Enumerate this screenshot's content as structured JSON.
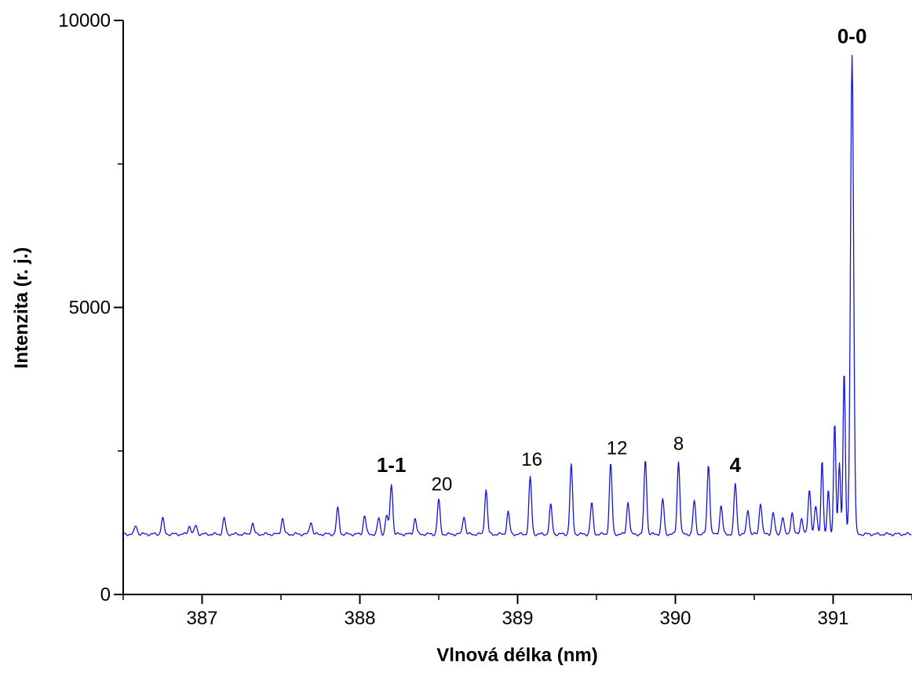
{
  "chart_data": {
    "type": "line",
    "xlabel": "Vlnová délka (nm)",
    "ylabel": "Intenzita (r. j.)",
    "xlim": [
      386.5,
      391.5
    ],
    "ylim": [
      0,
      10000
    ],
    "x_ticks": [
      387,
      388,
      389,
      390,
      391
    ],
    "x_tick_labels": [
      "387",
      "388",
      "389",
      "390",
      "391"
    ],
    "y_ticks": [
      0,
      5000,
      10000
    ],
    "y_tick_labels": [
      "0",
      "5000",
      "10000"
    ],
    "grid": false,
    "baseline": 1050,
    "series": [
      {
        "color": "#1414d8",
        "peaks": [
          [
            386.58,
            1200
          ],
          [
            386.75,
            1330
          ],
          [
            386.92,
            1200
          ],
          [
            386.96,
            1200
          ],
          [
            387.14,
            1330
          ],
          [
            387.32,
            1240
          ],
          [
            387.51,
            1330
          ],
          [
            387.69,
            1270
          ],
          [
            387.86,
            1500
          ],
          [
            388.03,
            1380
          ],
          [
            388.12,
            1330
          ],
          [
            388.17,
            1380
          ],
          [
            388.2,
            1930
          ],
          [
            388.35,
            1330
          ],
          [
            388.5,
            1650
          ],
          [
            388.66,
            1370
          ],
          [
            388.8,
            1830
          ],
          [
            388.94,
            1440
          ],
          [
            389.08,
            2040
          ],
          [
            389.21,
            1560
          ],
          [
            389.34,
            2250
          ],
          [
            389.47,
            1590
          ],
          [
            389.59,
            2280
          ],
          [
            389.7,
            1620
          ],
          [
            389.81,
            2350
          ],
          [
            389.92,
            1660
          ],
          [
            390.02,
            2320
          ],
          [
            390.12,
            1620
          ],
          [
            390.21,
            2270
          ],
          [
            390.29,
            1550
          ],
          [
            390.38,
            1930
          ],
          [
            390.46,
            1480
          ],
          [
            390.54,
            1600
          ],
          [
            390.62,
            1430
          ],
          [
            390.68,
            1350
          ],
          [
            390.74,
            1430
          ],
          [
            390.8,
            1330
          ],
          [
            390.85,
            1830
          ],
          [
            390.89,
            1530
          ],
          [
            390.93,
            2350
          ],
          [
            390.97,
            1830
          ],
          [
            391.01,
            2990
          ],
          [
            391.04,
            2290
          ],
          [
            391.07,
            3900
          ],
          [
            391.12,
            9400
          ]
        ]
      }
    ],
    "annotations": [
      {
        "text": "0-0",
        "x": 391.12,
        "y": 9550,
        "bold": true
      },
      {
        "text": "1-1",
        "x": 388.2,
        "y": 2080,
        "bold": true
      },
      {
        "text": "20",
        "x": 388.52,
        "y": 1760,
        "bold": false
      },
      {
        "text": "16",
        "x": 389.09,
        "y": 2190,
        "bold": false
      },
      {
        "text": "12",
        "x": 389.63,
        "y": 2390,
        "bold": false
      },
      {
        "text": "8",
        "x": 390.02,
        "y": 2460,
        "bold": false
      },
      {
        "text": "4",
        "x": 390.38,
        "y": 2080,
        "bold": true
      }
    ]
  }
}
